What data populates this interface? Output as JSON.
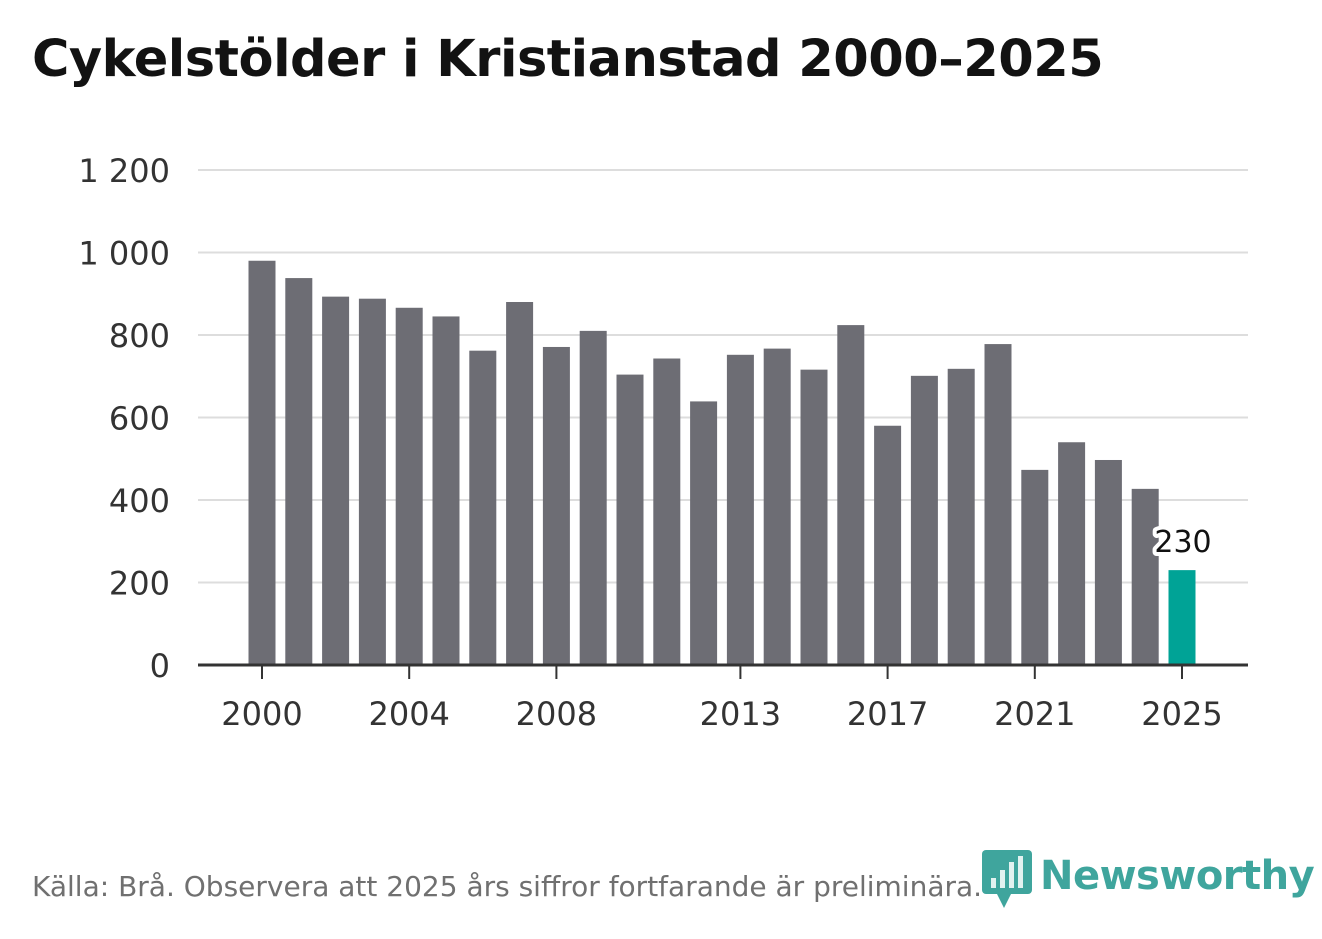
{
  "chart_data": {
    "type": "bar",
    "title": "Cykelstölder i Kristianstad 2000–2025",
    "xlabel": "",
    "ylabel": "",
    "categories": [
      "2000",
      "2001",
      "2002",
      "2003",
      "2004",
      "2005",
      "2006",
      "2007",
      "2008",
      "2009",
      "2010",
      "2011",
      "2012",
      "2013",
      "2014",
      "2015",
      "2016",
      "2017",
      "2018",
      "2019",
      "2020",
      "2021",
      "2022",
      "2023",
      "2024",
      "2025"
    ],
    "values": [
      980,
      938,
      893,
      888,
      866,
      845,
      762,
      880,
      771,
      810,
      704,
      743,
      639,
      752,
      767,
      716,
      824,
      580,
      701,
      718,
      778,
      473,
      540,
      497,
      427,
      230
    ],
    "ylim": [
      0,
      1200
    ],
    "yticks": [
      0,
      200,
      400,
      600,
      800,
      1000,
      1200
    ],
    "ytick_labels": [
      "0",
      "200",
      "400",
      "600",
      "800",
      "1 000",
      "1 200"
    ],
    "xtick_labels": [
      "2000",
      "2004",
      "2008",
      "2013",
      "2017",
      "2021",
      "2025"
    ],
    "highlight": {
      "category": "2025",
      "label": "230"
    },
    "colors": {
      "bar": "#6d6d74",
      "highlight": "#00a396",
      "grid": "#dddddd",
      "axis": "#333333",
      "text": "#333333"
    },
    "grid": true
  },
  "source_note": "Källa: Brå. Observera att 2025 års siffror fortfarande är preliminära.",
  "brand": {
    "name": "Newsworthy",
    "color": "#3fa59d",
    "icon": "newsworthy-logo-icon"
  }
}
